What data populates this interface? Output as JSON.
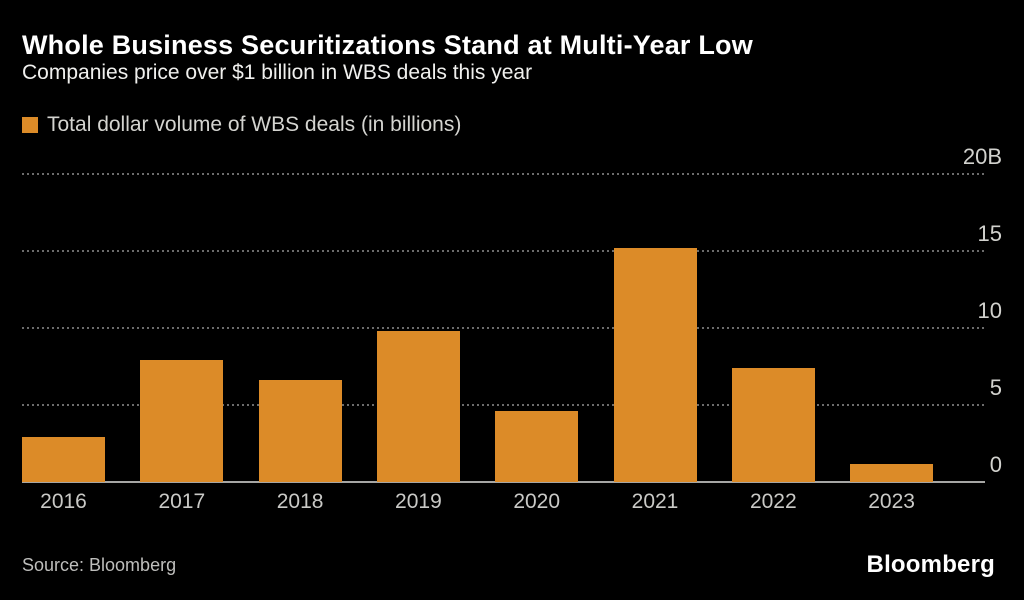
{
  "header": {
    "title": "Whole Business Securitizations Stand at Multi-Year Low",
    "subtitle": "Companies price over $1 billion in WBS deals this year"
  },
  "legend": {
    "label": "Total dollar volume of WBS deals (in billions)",
    "swatch_color": "#DC8B28"
  },
  "footer": {
    "source": "Source: Bloomberg",
    "logo": "Bloomberg"
  },
  "colors": {
    "background": "#000000",
    "bar": "#DC8B28",
    "title": "#FFFFFF",
    "gridline": "#6C6C6C",
    "axis_line": "#A6A6A4",
    "tick_label": "#D2D2CE"
  },
  "chart_data": {
    "type": "bar",
    "title": "Whole Business Securitizations Stand at Multi-Year Low",
    "subtitle": "Companies price over $1 billion in WBS deals this year",
    "series_name": "Total dollar volume of WBS deals (in billions)",
    "categories": [
      "2016",
      "2017",
      "2018",
      "2019",
      "2020",
      "2021",
      "2022",
      "2023"
    ],
    "values": [
      2.9,
      7.9,
      6.6,
      9.8,
      4.6,
      15.2,
      7.4,
      1.2
    ],
    "xlabel": "",
    "ylabel": "Total dollar volume of WBS deals (in billions)",
    "ylim": [
      0,
      20
    ],
    "y_ticks": [
      {
        "label": "20B",
        "value": 20
      },
      {
        "label": "15",
        "value": 15
      },
      {
        "label": "10",
        "value": 10
      },
      {
        "label": "5",
        "value": 5
      },
      {
        "label": "0",
        "value": 0
      }
    ],
    "grid": "horizontal-dotted",
    "legend_position": "top-left",
    "bar_color": "#DC8B28"
  }
}
